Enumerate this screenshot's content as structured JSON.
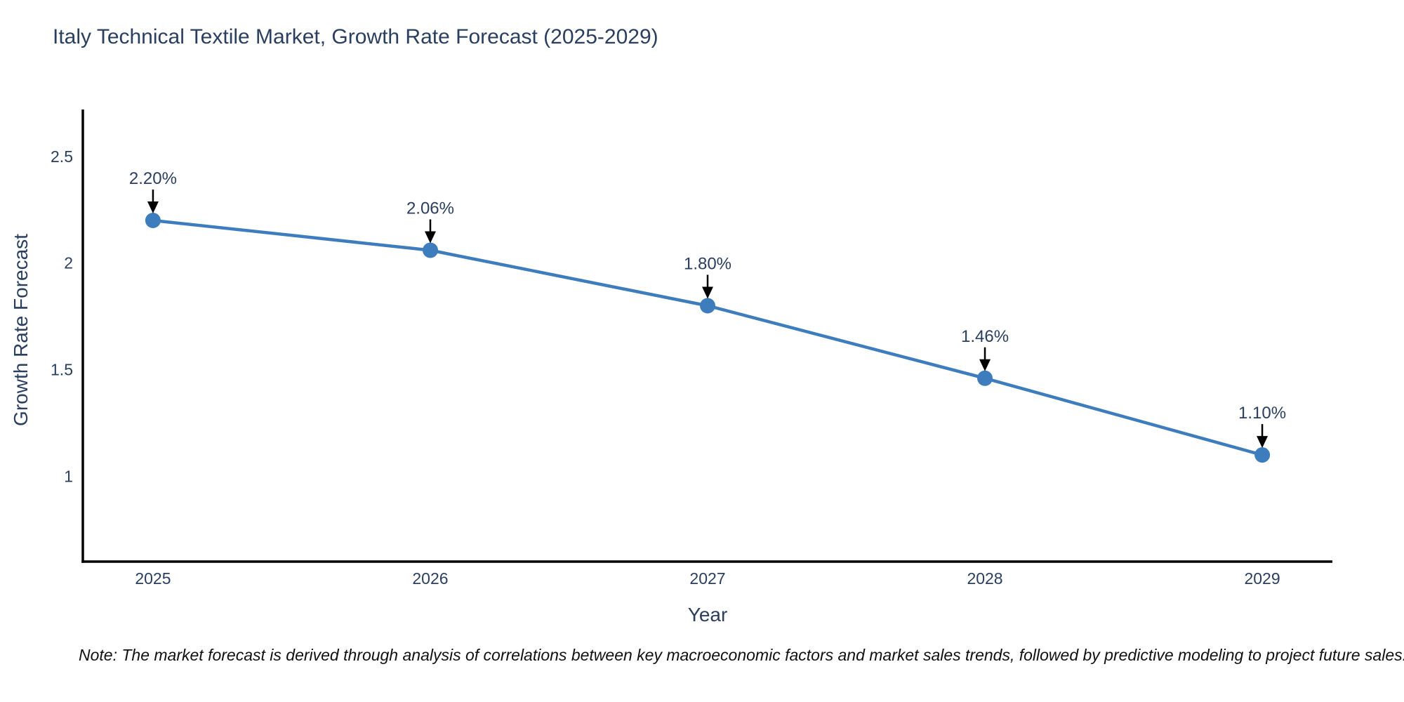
{
  "chart_data": {
    "type": "line",
    "title": "Italy Technical Textile Market, Growth Rate Forecast (2025-2029)",
    "xlabel": "Year",
    "ylabel": "Growth Rate Forecast",
    "x": [
      2025,
      2026,
      2027,
      2028,
      2029
    ],
    "series": [
      {
        "name": "Growth Rate Forecast",
        "values": [
          2.2,
          2.06,
          1.8,
          1.46,
          1.1
        ]
      }
    ],
    "point_labels": [
      "2.20%",
      "2.06%",
      "1.80%",
      "1.46%",
      "1.10%"
    ],
    "xticks": [
      2025,
      2026,
      2027,
      2028,
      2029
    ],
    "yticks": [
      1,
      1.5,
      2,
      2.5
    ],
    "xlim": [
      2024.747,
      2029.253
    ],
    "ylim": [
      0.6,
      2.72
    ],
    "grid": false,
    "legend": "none",
    "line_color": "#3e7dbd",
    "marker_color": "#3e7dbd",
    "axis_color": "#000000",
    "tick_color": "#2a3f5f",
    "label_color": "#2a3f5f",
    "arrow_color": "#000000",
    "footnote": "Note: The market forecast is derived through analysis of correlations between key macroeconomic factors and market sales trends, followed by predictive modeling to project future sales."
  }
}
